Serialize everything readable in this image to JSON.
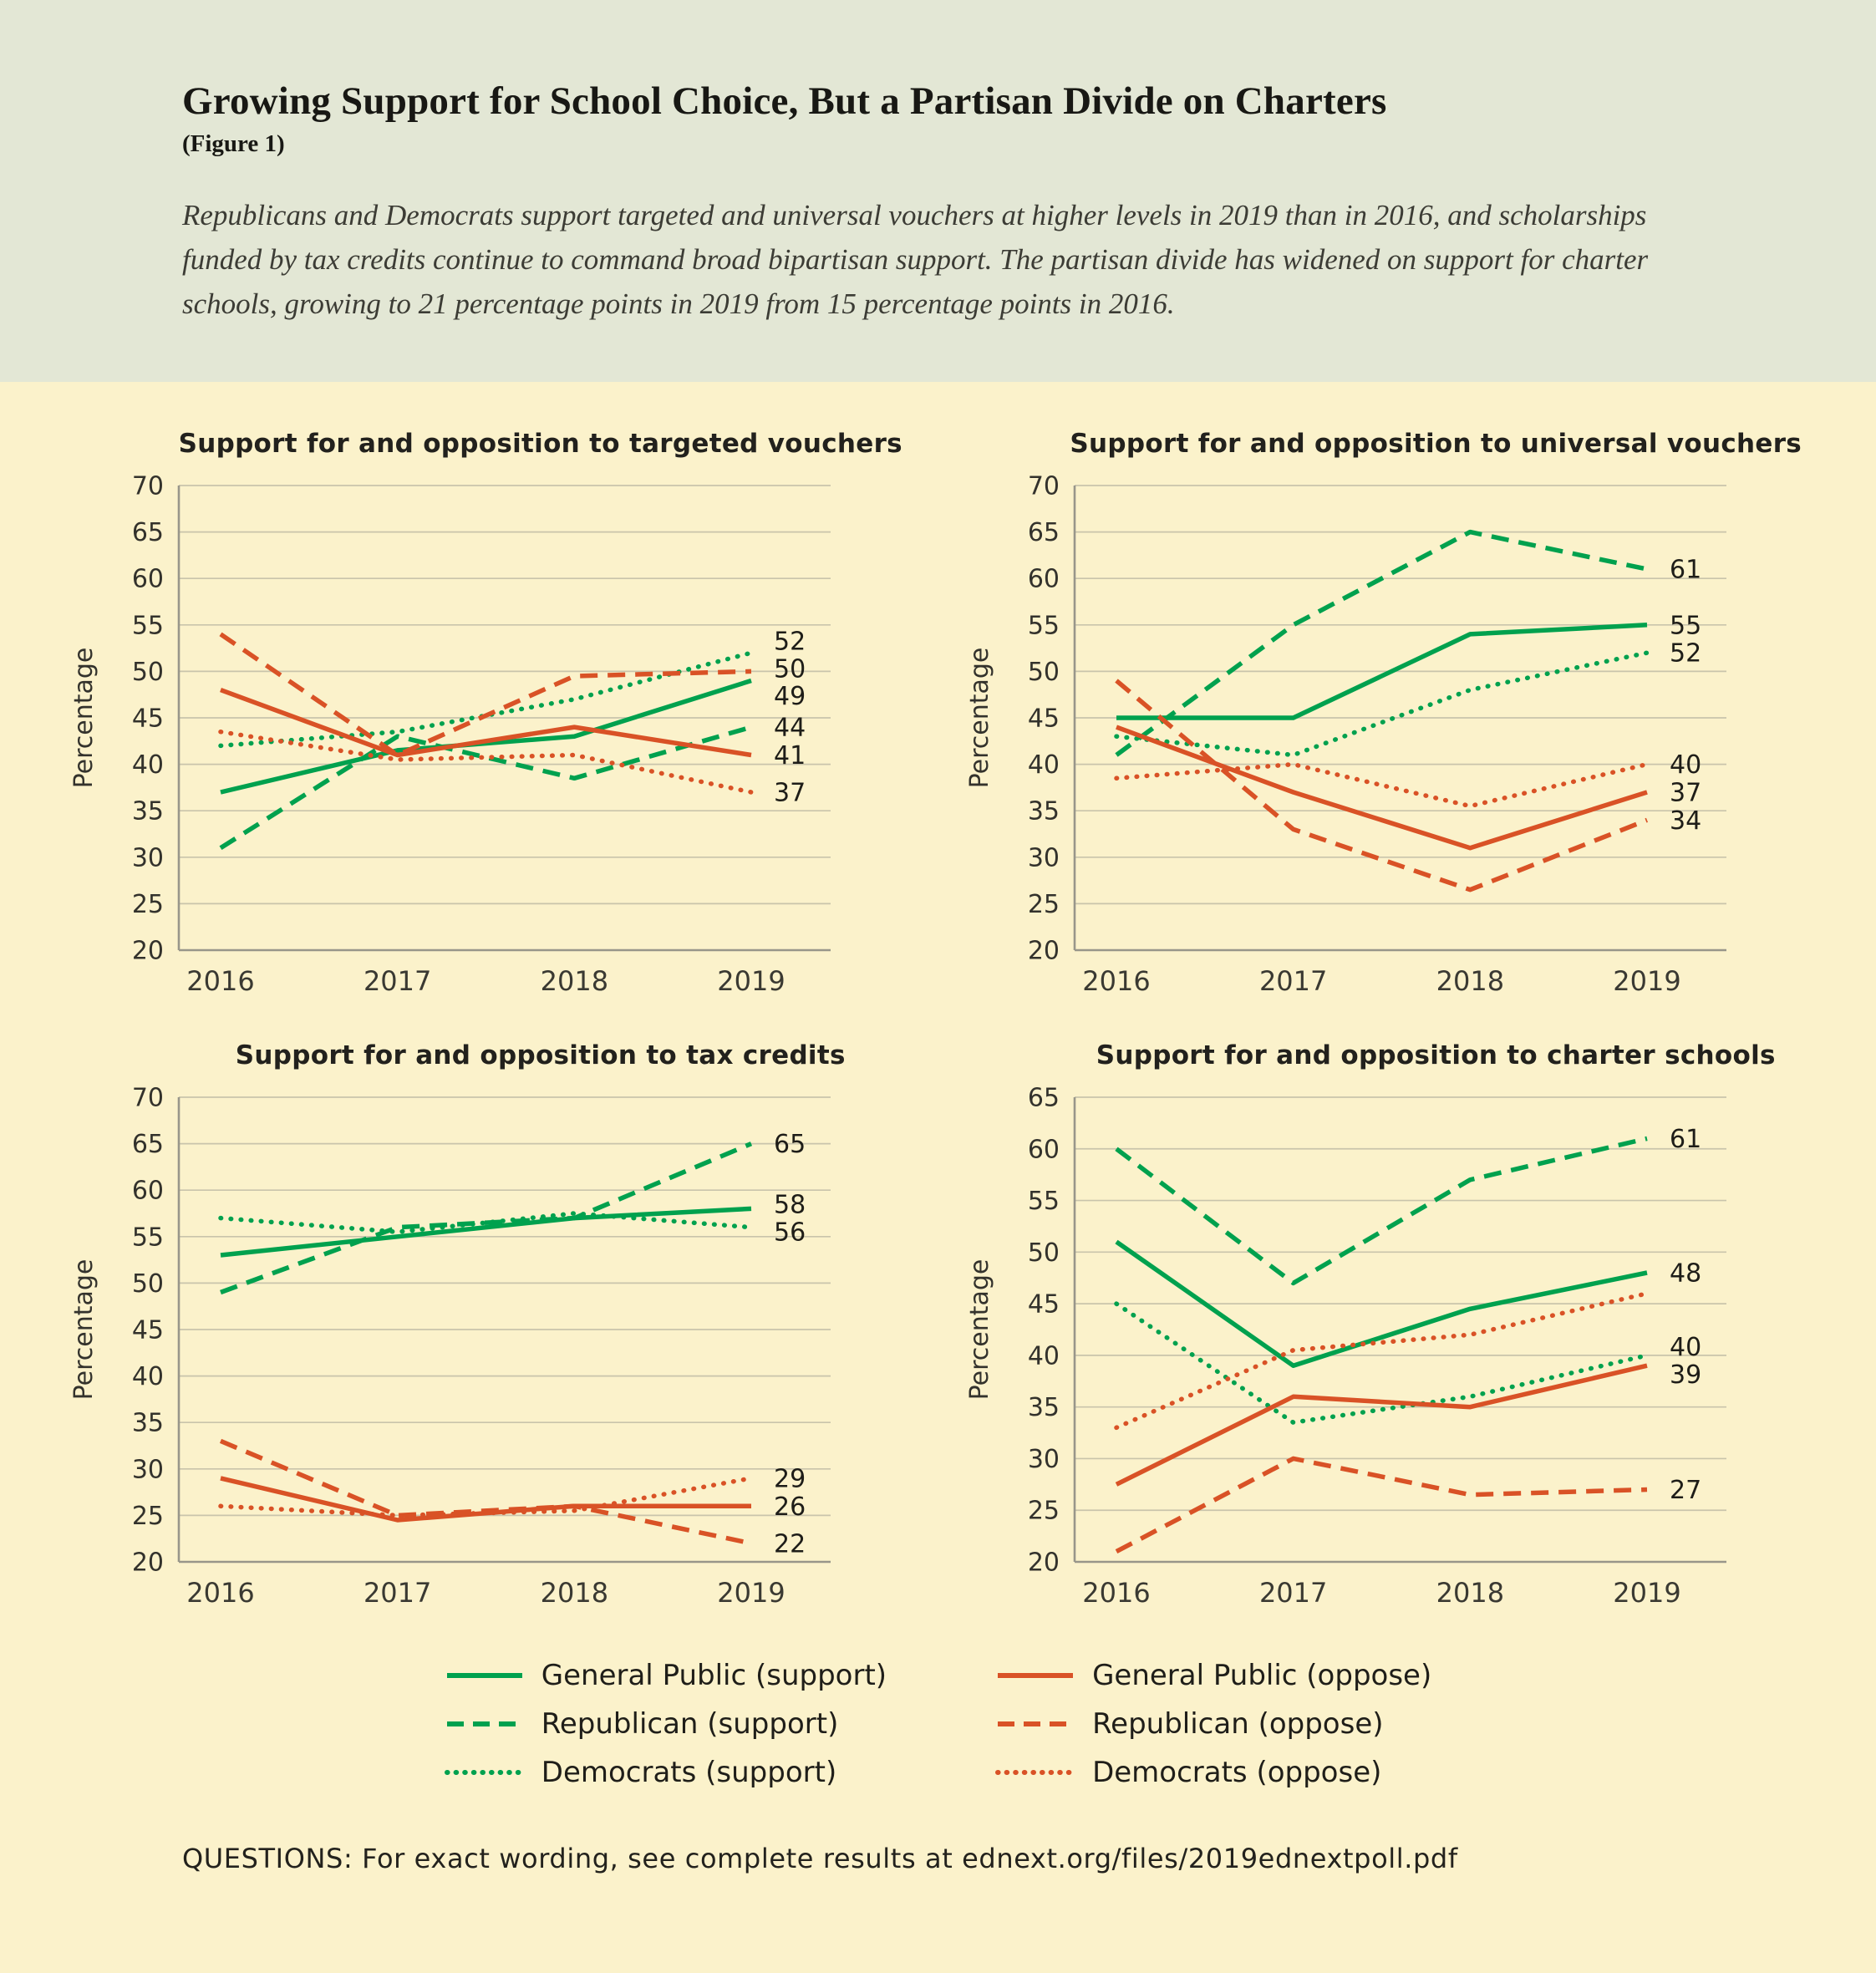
{
  "header": {
    "title": "Growing Support for School Choice, But a Partisan Divide on Charters",
    "figure_label": "(Figure 1)",
    "subtitle": "Republicans and Democrats support targeted and universal vouchers at higher levels in 2019 than in 2016, and scholarships funded by tax credits continue to command broad bipartisan support. The partisan divide has widened on support for charter schools, growing to 21 percentage points in 2019 from 15 percentage points in 2016."
  },
  "colors": {
    "support": "#00a14e",
    "oppose": "#d95226",
    "header_bg": "#e3e7d5",
    "body_bg": "#fbf2cb",
    "grid": "#c9c4ab",
    "axis": "#98968a",
    "text": "#1e1d1a"
  },
  "chart_data": [
    {
      "type": "line",
      "title": "Support for and opposition to targeted vouchers",
      "ylabel": "Percentage",
      "x": [
        "2016",
        "2017",
        "2018",
        "2019"
      ],
      "ylim": [
        20,
        70
      ],
      "ytick_step": 5,
      "grid": true,
      "series": [
        {
          "name": "General Public (support)",
          "color": "support",
          "dash": "solid",
          "values": [
            37,
            41.5,
            43,
            49
          ],
          "end_label": "49"
        },
        {
          "name": "Republican (support)",
          "color": "support",
          "dash": "dashed",
          "values": [
            31,
            43,
            38.5,
            44
          ],
          "end_label": "44"
        },
        {
          "name": "Democrats (support)",
          "color": "support",
          "dash": "dotted",
          "values": [
            42,
            43.5,
            47,
            52
          ],
          "end_label": "52"
        },
        {
          "name": "General Public (oppose)",
          "color": "oppose",
          "dash": "solid",
          "values": [
            48,
            41,
            44,
            41
          ],
          "end_label": "41"
        },
        {
          "name": "Republican (oppose)",
          "color": "oppose",
          "dash": "dashed",
          "values": [
            54,
            41,
            49.5,
            50
          ],
          "end_label": "50"
        },
        {
          "name": "Democrats (oppose)",
          "color": "oppose",
          "dash": "dotted",
          "values": [
            43.5,
            40.5,
            41,
            37
          ],
          "end_label": "37"
        }
      ]
    },
    {
      "type": "line",
      "title": "Support for and opposition to universal vouchers",
      "ylabel": "Percentage",
      "x": [
        "2016",
        "2017",
        "2018",
        "2019"
      ],
      "ylim": [
        20,
        70
      ],
      "ytick_step": 5,
      "grid": true,
      "series": [
        {
          "name": "General Public (support)",
          "color": "support",
          "dash": "solid",
          "values": [
            45,
            45,
            54,
            55
          ],
          "end_label": "55"
        },
        {
          "name": "Republican (support)",
          "color": "support",
          "dash": "dashed",
          "values": [
            41,
            55,
            65,
            61
          ],
          "end_label": "61"
        },
        {
          "name": "Democrats (support)",
          "color": "support",
          "dash": "dotted",
          "values": [
            43,
            41,
            48,
            52
          ],
          "end_label": "52"
        },
        {
          "name": "General Public (oppose)",
          "color": "oppose",
          "dash": "solid",
          "values": [
            44,
            37,
            31,
            37
          ],
          "end_label": "37"
        },
        {
          "name": "Republican (oppose)",
          "color": "oppose",
          "dash": "dashed",
          "values": [
            49,
            33,
            26.5,
            34
          ],
          "end_label": "34"
        },
        {
          "name": "Democrats (oppose)",
          "color": "oppose",
          "dash": "dotted",
          "values": [
            38.5,
            40,
            35.5,
            40
          ],
          "end_label": "40"
        }
      ]
    },
    {
      "type": "line",
      "title": "Support for and opposition to tax credits",
      "ylabel": "Percentage",
      "x": [
        "2016",
        "2017",
        "2018",
        "2019"
      ],
      "ylim": [
        20,
        70
      ],
      "ytick_step": 5,
      "grid": true,
      "series": [
        {
          "name": "General Public (support)",
          "color": "support",
          "dash": "solid",
          "values": [
            53,
            55,
            57,
            58
          ],
          "end_label": "58"
        },
        {
          "name": "Republican (support)",
          "color": "support",
          "dash": "dashed",
          "values": [
            49,
            56,
            57,
            65
          ],
          "end_label": "65"
        },
        {
          "name": "Democrats (support)",
          "color": "support",
          "dash": "dotted",
          "values": [
            57,
            55.5,
            57.5,
            56
          ],
          "end_label": "56"
        },
        {
          "name": "General Public (oppose)",
          "color": "oppose",
          "dash": "solid",
          "values": [
            29,
            24.5,
            26,
            26
          ],
          "end_label": "26"
        },
        {
          "name": "Republican (oppose)",
          "color": "oppose",
          "dash": "dashed",
          "values": [
            33,
            25,
            26,
            22
          ],
          "end_label": "22"
        },
        {
          "name": "Democrats (oppose)",
          "color": "oppose",
          "dash": "dotted",
          "values": [
            26,
            25,
            25.5,
            29
          ],
          "end_label": "29"
        }
      ]
    },
    {
      "type": "line",
      "title": "Support for and opposition to charter schools",
      "ylabel": "Percentage",
      "x": [
        "2016",
        "2017",
        "2018",
        "2019"
      ],
      "ylim": [
        20,
        65
      ],
      "ytick_step": 5,
      "grid": true,
      "series": [
        {
          "name": "General Public (support)",
          "color": "support",
          "dash": "solid",
          "values": [
            51,
            39,
            44.5,
            48
          ],
          "end_label": "48"
        },
        {
          "name": "Republican (support)",
          "color": "support",
          "dash": "dashed",
          "values": [
            60,
            47,
            57,
            61
          ],
          "end_label": "61"
        },
        {
          "name": "Democrats (support)",
          "color": "support",
          "dash": "dotted",
          "values": [
            45,
            33.5,
            36,
            40
          ],
          "end_label": "40"
        },
        {
          "name": "General Public (oppose)",
          "color": "oppose",
          "dash": "solid",
          "values": [
            27.5,
            36,
            35,
            39
          ],
          "end_label": "39"
        },
        {
          "name": "Republican (oppose)",
          "color": "oppose",
          "dash": "dashed",
          "values": [
            21,
            30,
            26.5,
            27
          ],
          "end_label": "27"
        },
        {
          "name": "Democrats (oppose)",
          "color": "oppose",
          "dash": "dotted",
          "values": [
            33,
            40.5,
            42,
            46
          ],
          "end_label": ""
        }
      ]
    }
  ],
  "legend": {
    "position": "bottom",
    "items": [
      {
        "label": "General Public (support)",
        "color": "support",
        "dash": "solid"
      },
      {
        "label": "General Public (oppose)",
        "color": "oppose",
        "dash": "solid"
      },
      {
        "label": "Republican (support)",
        "color": "support",
        "dash": "dashed"
      },
      {
        "label": "Republican (oppose)",
        "color": "oppose",
        "dash": "dashed"
      },
      {
        "label": "Democrats (support)",
        "color": "support",
        "dash": "dotted"
      },
      {
        "label": "Democrats (oppose)",
        "color": "oppose",
        "dash": "dotted"
      }
    ]
  },
  "footer": {
    "text": "QUESTIONS: For exact wording, see complete results at ednext.org/files/2019ednextpoll.pdf"
  }
}
